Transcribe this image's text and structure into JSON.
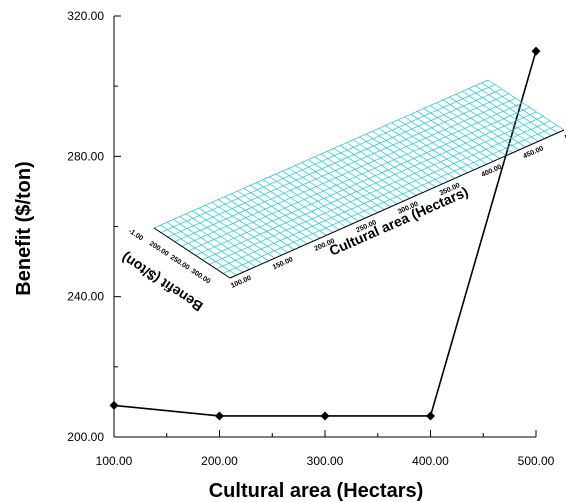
{
  "chart_data": {
    "type": "line",
    "xlabel": "Cultural area (Hectars)",
    "ylabel": "Benefit ($/ton)",
    "xlim": [
      100,
      500
    ],
    "ylim": [
      200,
      320
    ],
    "x_ticks": [
      "100.00",
      "200.00",
      "300.00",
      "400.00",
      "500.00"
    ],
    "y_ticks": [
      "200.00",
      "240.00",
      "280.00",
      "320.00"
    ],
    "x_minor_ticks": [
      150,
      250,
      350,
      450
    ],
    "series": [
      {
        "x": [
          100,
          200,
          300,
          400,
          500
        ],
        "values": [
          209,
          206,
          206,
          206,
          310
        ]
      }
    ],
    "marker": "diamond",
    "line_color": "#000000",
    "inset_surface": {
      "grid_color": "#1fc7d8",
      "x_title": "Cultural area (Hectars)",
      "y_title": "Benefit ($/ton)",
      "x_ticks": [
        "100.00",
        "150.00",
        "200.00",
        "250.00",
        "300.00",
        "350.00",
        "400.00",
        "450.00",
        "500.00"
      ],
      "y_ticks": [
        "200.00",
        "250.00",
        "300.00"
      ],
      "corner_label": "-1.00"
    }
  }
}
